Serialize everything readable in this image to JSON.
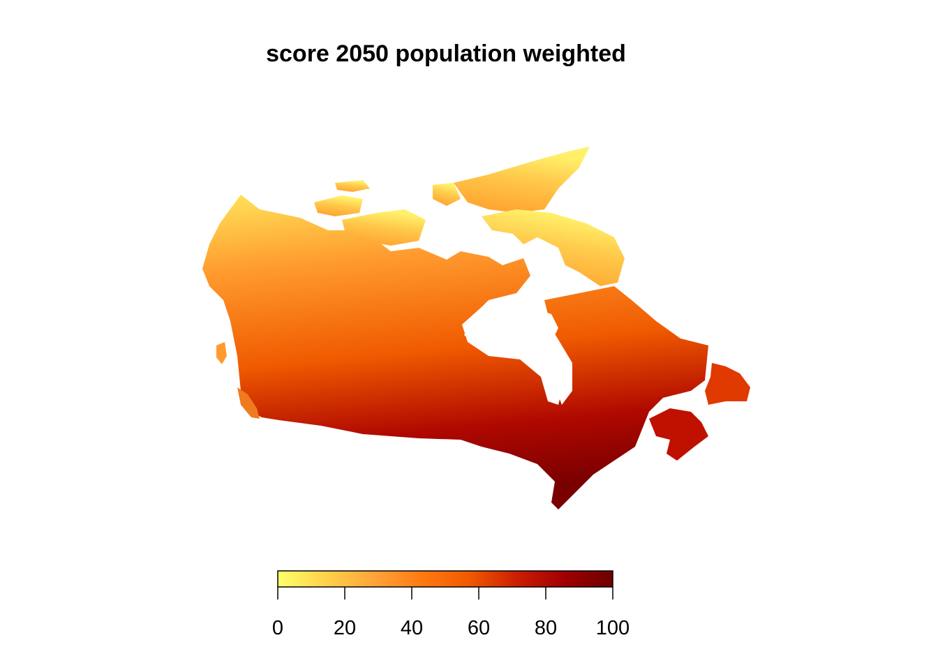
{
  "title": "score 2050 population weighted",
  "legend": {
    "min": 0,
    "max": 100,
    "ticks": [
      0,
      20,
      40,
      60,
      80,
      100
    ],
    "tick_labels": [
      "0",
      "20",
      "40",
      "60",
      "80",
      "100"
    ],
    "color_stops": [
      "#FFFF6B",
      "#FFD24A",
      "#FFA53A",
      "#FF7A12",
      "#F05A00",
      "#CC1E00",
      "#A00000",
      "#6E0000"
    ]
  }
}
